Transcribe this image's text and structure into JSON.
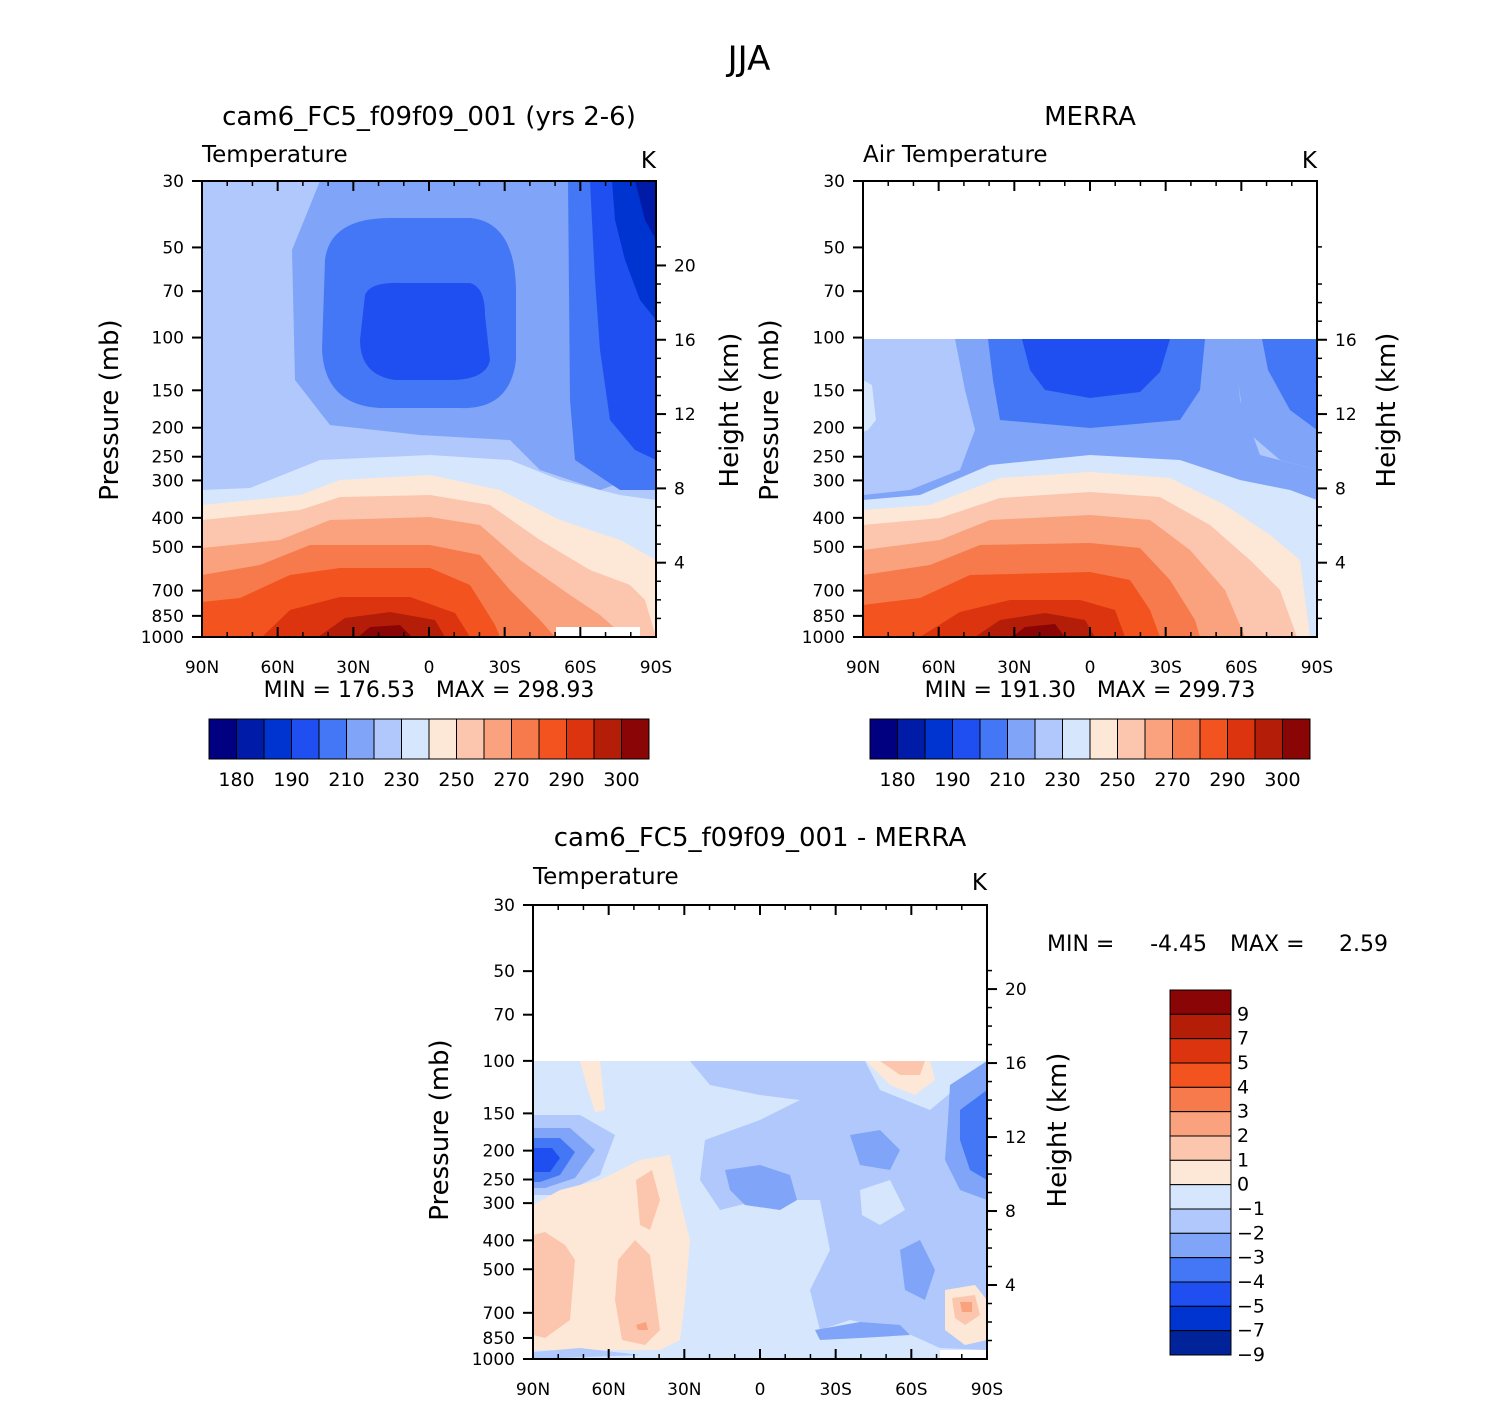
{
  "figure_title": "JJA",
  "colors": {
    "main_levels": [
      "#000080",
      "#001ba8",
      "#0034d0",
      "#1f4ff0",
      "#4477f5",
      "#7fa4f8",
      "#b0c8fb",
      "#d6e6fd",
      "#fde8d8",
      "#fbc6ad",
      "#f9a27d",
      "#f67a4b",
      "#f2531f",
      "#db340e",
      "#b41e08",
      "#8a0505"
    ],
    "diff_levels": [
      "#00239a",
      "#0034d0",
      "#1f4ff0",
      "#4477f5",
      "#7fa4f8",
      "#b0c8fb",
      "#d6e6fd",
      "#fde8d8",
      "#fbc6ad",
      "#f9a27d",
      "#f67a4b",
      "#f2531f",
      "#db340e",
      "#b41e08",
      "#8a0505"
    ]
  },
  "chart_data": [
    {
      "type": "heatmap",
      "title": "cam6_FC5_f09f09_001 (yrs 2-6)",
      "subtitle_left": "Temperature",
      "subtitle_right": "K",
      "xlabel": "",
      "ylabel": "Pressure (mb)",
      "ylabel_right": "Height (km)",
      "x_ticks": [
        "90N",
        "60N",
        "30N",
        "0",
        "30S",
        "60S",
        "90S"
      ],
      "y_ticks": [
        "30",
        "50",
        "70",
        "100",
        "150",
        "200",
        "250",
        "300",
        "400",
        "500",
        "700",
        "850",
        "1000"
      ],
      "y_ticks_right": [
        "20",
        "16",
        "12",
        "8",
        "4"
      ],
      "y_log_scale": true,
      "ylim": [
        1000,
        30
      ],
      "stats_text": "MIN = 176.53   MAX = 298.93",
      "colorbar_labels": [
        "180",
        "190",
        "210",
        "230",
        "250",
        "270",
        "290",
        "300"
      ]
    },
    {
      "type": "heatmap",
      "title": "MERRA",
      "subtitle_left": "Air Temperature",
      "subtitle_right": "K",
      "xlabel": "",
      "ylabel": "Pressure (mb)",
      "ylabel_right": "Height (km)",
      "x_ticks": [
        "90N",
        "60N",
        "30N",
        "0",
        "30S",
        "60S",
        "90S"
      ],
      "y_ticks": [
        "30",
        "50",
        "70",
        "100",
        "150",
        "200",
        "250",
        "300",
        "400",
        "500",
        "700",
        "850",
        "1000"
      ],
      "y_ticks_right": [
        "16",
        "12",
        "8",
        "4"
      ],
      "y_log_scale": true,
      "ylim": [
        1000,
        30
      ],
      "data_top_pressure": 100,
      "stats_text": "MIN = 191.30   MAX = 299.73",
      "colorbar_labels": [
        "180",
        "190",
        "210",
        "230",
        "250",
        "270",
        "290",
        "300"
      ]
    },
    {
      "type": "heatmap",
      "title": "cam6_FC5_f09f09_001 - MERRA",
      "subtitle_left": "Temperature",
      "subtitle_right": "K",
      "xlabel": "",
      "ylabel": "Pressure (mb)",
      "ylabel_right": "Height (km)",
      "x_ticks": [
        "90N",
        "60N",
        "30N",
        "0",
        "30S",
        "60S",
        "90S"
      ],
      "y_ticks": [
        "30",
        "50",
        "70",
        "100",
        "150",
        "200",
        "250",
        "300",
        "400",
        "500",
        "700",
        "850",
        "1000"
      ],
      "y_ticks_right": [
        "20",
        "16",
        "12",
        "8",
        "4"
      ],
      "y_log_scale": true,
      "ylim": [
        1000,
        30
      ],
      "data_top_pressure": 100,
      "stats_min_label": "MIN =",
      "stats_min_value": "-4.45",
      "stats_max_label": "MAX =",
      "stats_max_value": "2.59",
      "colorbar_labels": [
        "9",
        "7",
        "5",
        "4",
        "3",
        "2",
        "1",
        "0",
        "-1",
        "-2",
        "-3",
        "-4",
        "-5",
        "-7",
        "-9"
      ]
    }
  ]
}
